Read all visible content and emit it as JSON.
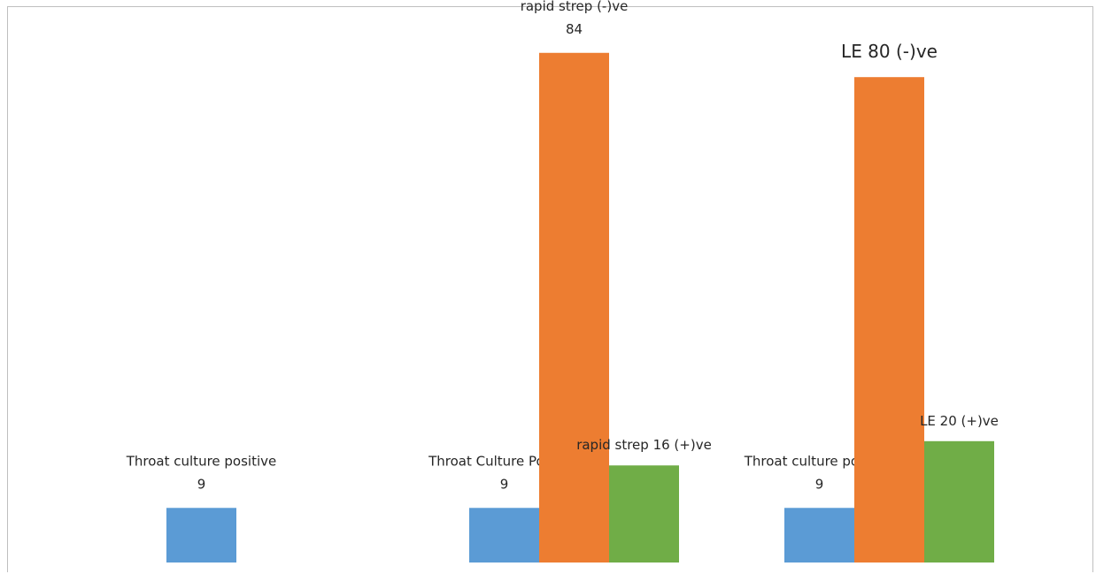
{
  "chart_data": {
    "type": "bar",
    "title": "",
    "xlabel": "",
    "ylabel": "",
    "ylim": [
      0,
      90
    ],
    "grid": false,
    "legend": "none",
    "groups": [
      {
        "name": "group-1",
        "bars": [
          {
            "series": "blue",
            "value": 9,
            "label_line1": "Throat culture positive",
            "label_line2": "9",
            "color": "#5b9bd5"
          }
        ]
      },
      {
        "name": "group-2",
        "bars": [
          {
            "series": "blue",
            "value": 9,
            "label_line1": "Throat Culture Positive",
            "label_line2": "9",
            "color": "#5b9bd5"
          },
          {
            "series": "orange",
            "value": 84,
            "label_line1": "rapid strep (-)ve",
            "label_line2": "84",
            "color": "#ed7d31"
          },
          {
            "series": "green",
            "value": 16,
            "label_line1": "rapid strep 16 (+)ve",
            "label_line2": "",
            "color": "#70ad47"
          }
        ]
      },
      {
        "name": "group-3",
        "bars": [
          {
            "series": "blue",
            "value": 9,
            "label_line1": "Throat culture positive",
            "label_line2": "9",
            "color": "#5b9bd5"
          },
          {
            "series": "orange",
            "value": 80,
            "label_line1": "LE 80 (-)ve",
            "label_line2": "",
            "color": "#ed7d31",
            "large_label": true
          },
          {
            "series": "green",
            "value": 20,
            "label_line1": "LE 20 (+)ve",
            "label_line2": "",
            "color": "#70ad47"
          }
        ]
      }
    ]
  }
}
